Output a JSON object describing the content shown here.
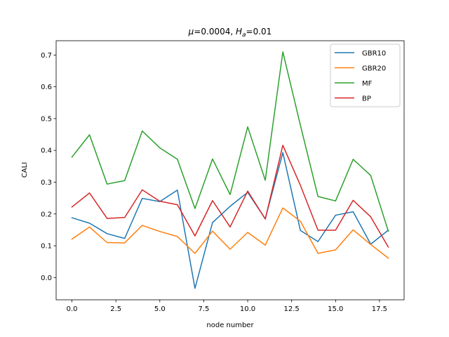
{
  "chart_data": {
    "type": "line",
    "title": "μ=0.0004, H_a=0.01",
    "title_parts": {
      "mu_symbol": "μ",
      "mu_value": "=0.0004, ",
      "h_symbol": "H",
      "h_sub": "a",
      "h_value": "=0.01"
    },
    "xlabel": "node number",
    "ylabel": "CALI",
    "xlim": [
      -0.9,
      18.9
    ],
    "ylim": [
      -0.07,
      0.745
    ],
    "xticks": [
      0.0,
      2.5,
      5.0,
      7.5,
      10.0,
      12.5,
      15.0,
      17.5
    ],
    "xtick_labels": [
      "0.0",
      "2.5",
      "5.0",
      "7.5",
      "10.0",
      "12.5",
      "15.0",
      "17.5"
    ],
    "yticks": [
      0.0,
      0.1,
      0.2,
      0.3,
      0.4,
      0.5,
      0.6,
      0.7
    ],
    "ytick_labels": [
      "0.0",
      "0.1",
      "0.2",
      "0.3",
      "0.4",
      "0.5",
      "0.6",
      "0.7"
    ],
    "grid": false,
    "legend_position": "top-right",
    "x": [
      0,
      1,
      2,
      3,
      4,
      5,
      6,
      7,
      8,
      9,
      10,
      11,
      12,
      13,
      14,
      15,
      16,
      17,
      18
    ],
    "series": [
      {
        "name": "GBR10",
        "color": "#1f77b4",
        "values": [
          0.188,
          0.171,
          0.138,
          0.123,
          0.249,
          0.239,
          0.275,
          -0.034,
          0.173,
          0.224,
          0.268,
          0.185,
          0.393,
          0.148,
          0.113,
          0.196,
          0.207,
          0.105,
          0.149
        ]
      },
      {
        "name": "GBR20",
        "color": "#ff7f0e",
        "values": [
          0.121,
          0.159,
          0.11,
          0.109,
          0.164,
          0.145,
          0.129,
          0.076,
          0.146,
          0.089,
          0.142,
          0.102,
          0.219,
          0.177,
          0.076,
          0.087,
          0.15,
          0.104,
          0.061
        ]
      },
      {
        "name": "MF",
        "color": "#2ca02c",
        "values": [
          0.379,
          0.449,
          0.294,
          0.305,
          0.461,
          0.408,
          0.372,
          0.217,
          0.373,
          0.261,
          0.474,
          0.306,
          0.71,
          0.479,
          0.255,
          0.241,
          0.372,
          0.321,
          0.146
        ]
      },
      {
        "name": "BP",
        "color": "#d62728",
        "values": [
          0.222,
          0.266,
          0.186,
          0.189,
          0.276,
          0.24,
          0.229,
          0.131,
          0.242,
          0.159,
          0.272,
          0.184,
          0.416,
          0.29,
          0.149,
          0.149,
          0.243,
          0.191,
          0.096
        ]
      }
    ]
  }
}
